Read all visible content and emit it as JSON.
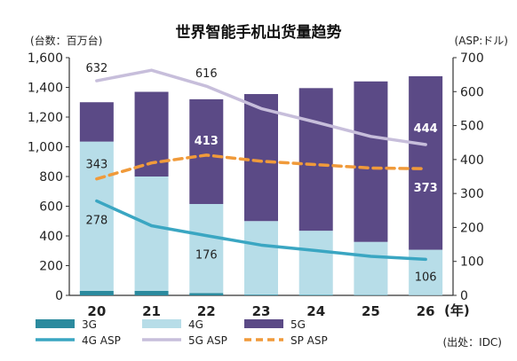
{
  "chart_data": {
    "type": "bar",
    "title": "世界智能手机出货量趋势",
    "left_axis_unit": "(台数：百万台)",
    "right_axis_unit": "(ASP:ドル)",
    "x_unit": "(年)",
    "source": "(出处：IDC)",
    "categories": [
      "20",
      "21",
      "22",
      "23",
      "24",
      "25",
      "26"
    ],
    "left_ylim": [
      0,
      1600
    ],
    "left_ticks": [
      "0",
      "200",
      "400",
      "600",
      "800",
      "1,000",
      "1,200",
      "1,400",
      "1,600"
    ],
    "right_ylim": [
      0,
      700
    ],
    "right_ticks": [
      "0",
      "100",
      "200",
      "300",
      "400",
      "500",
      "600",
      "700"
    ],
    "grid": false,
    "legend_position": "bottom",
    "bar_series": [
      {
        "name": "3G",
        "color": "#2b8a9e",
        "values": [
          30,
          30,
          15,
          5,
          3,
          2,
          1
        ]
      },
      {
        "name": "4G",
        "color": "#b7dde8",
        "values": [
          1005,
          770,
          600,
          495,
          432,
          358,
          306
        ]
      },
      {
        "name": "5G",
        "color": "#5b4a86",
        "values": [
          265,
          570,
          705,
          855,
          960,
          1080,
          1168
        ]
      }
    ],
    "line_series": [
      {
        "name": "4G ASP",
        "color": "#3aa6c2",
        "style": "solid",
        "values": [
          278,
          205,
          176,
          148,
          132,
          115,
          106
        ]
      },
      {
        "name": "5G ASP",
        "color": "#c7bedb",
        "style": "solid",
        "values": [
          632,
          663,
          616,
          550,
          510,
          468,
          444
        ]
      },
      {
        "name": "SP ASP",
        "color": "#f09a3a",
        "style": "dashed",
        "values": [
          343,
          390,
          413,
          395,
          385,
          375,
          373
        ]
      }
    ],
    "data_labels": [
      {
        "series": "5G ASP",
        "index": 0,
        "text": "632"
      },
      {
        "series": "5G ASP",
        "index": 2,
        "text": "616"
      },
      {
        "series": "5G ASP",
        "index": 6,
        "text": "444"
      },
      {
        "series": "SP ASP",
        "index": 0,
        "text": "343"
      },
      {
        "series": "SP ASP",
        "index": 2,
        "text": "413"
      },
      {
        "series": "SP ASP",
        "index": 6,
        "text": "373"
      },
      {
        "series": "4G ASP",
        "index": 0,
        "text": "278"
      },
      {
        "series": "4G ASP",
        "index": 2,
        "text": "176"
      },
      {
        "series": "4G ASP",
        "index": 6,
        "text": "106"
      }
    ],
    "legend": [
      {
        "name": "3G",
        "kind": "box",
        "color": "#2b8a9e"
      },
      {
        "name": "4G",
        "kind": "box",
        "color": "#b7dde8"
      },
      {
        "name": "5G",
        "kind": "box",
        "color": "#5b4a86"
      },
      {
        "name": "4G ASP",
        "kind": "line",
        "color": "#3aa6c2"
      },
      {
        "name": "5G ASP",
        "kind": "line",
        "color": "#c7bedb"
      },
      {
        "name": "SP ASP",
        "kind": "dash",
        "color": "#f09a3a"
      }
    ]
  }
}
